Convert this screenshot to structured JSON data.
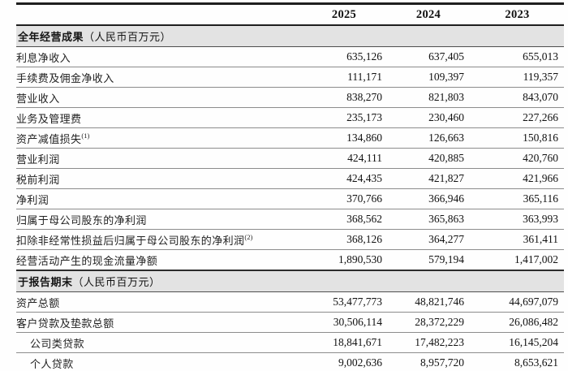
{
  "table": {
    "columns": [
      "2025",
      "2024",
      "2023"
    ],
    "sections": [
      {
        "title": "全年经营成果",
        "unit": "（人民币百万元）",
        "rows": [
          {
            "label": "利息净收入",
            "values": [
              "635,126",
              "637,405",
              "655,013"
            ]
          },
          {
            "label": "手续费及佣金净收入",
            "values": [
              "111,171",
              "109,397",
              "119,357"
            ]
          },
          {
            "label": "营业收入",
            "values": [
              "838,270",
              "821,803",
              "843,070"
            ]
          },
          {
            "label": "业务及管理费",
            "values": [
              "235,173",
              "230,460",
              "227,266"
            ]
          },
          {
            "label": "资产减值损失",
            "note": "(1)",
            "values": [
              "134,860",
              "126,663",
              "150,816"
            ]
          },
          {
            "label": "营业利润",
            "values": [
              "424,111",
              "420,885",
              "420,760"
            ]
          },
          {
            "label": "税前利润",
            "values": [
              "424,435",
              "421,827",
              "421,966"
            ]
          },
          {
            "label": "净利润",
            "values": [
              "370,766",
              "366,946",
              "365,116"
            ]
          },
          {
            "label": "归属于母公司股东的净利润",
            "values": [
              "368,562",
              "365,863",
              "363,993"
            ]
          },
          {
            "label": "扣除非经常性损益后归属于母公司股东的净利润",
            "note": "(2)",
            "values": [
              "368,126",
              "364,277",
              "361,411"
            ]
          },
          {
            "label": "经营活动产生的现金流量净额",
            "values": [
              "1,890,530",
              "579,194",
              "1,417,002"
            ]
          }
        ]
      },
      {
        "title": "于报告期末",
        "unit": "（人民币百万元）",
        "rows": [
          {
            "label": "资产总额",
            "values": [
              "53,477,773",
              "48,821,746",
              "44,697,079"
            ]
          },
          {
            "label": "客户贷款及垫款总额",
            "values": [
              "30,506,114",
              "28,372,229",
              "26,086,482"
            ]
          },
          {
            "label": "公司类贷款",
            "indent": true,
            "values": [
              "18,841,671",
              "17,482,223",
              "16,145,204"
            ]
          },
          {
            "label": "个人贷款",
            "indent": true,
            "values": [
              "9,002,636",
              "8,957,720",
              "8,653,621"
            ]
          }
        ]
      }
    ]
  }
}
